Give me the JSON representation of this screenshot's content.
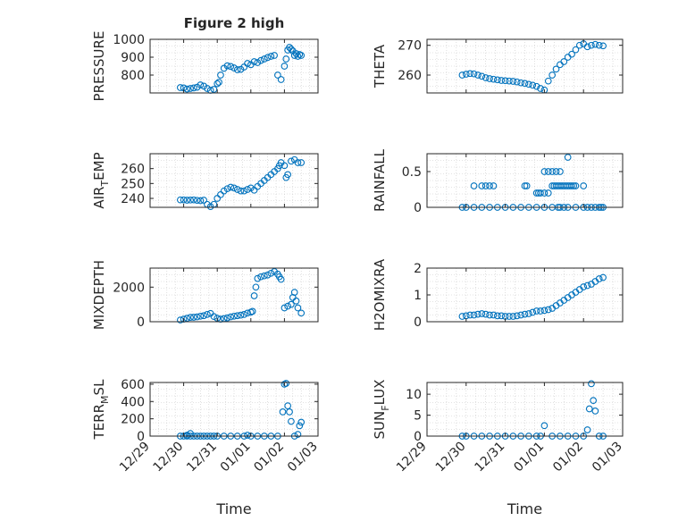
{
  "figure_title": "Figure 2 high",
  "colors": {
    "marker": "#0072BD",
    "axes": "#262626",
    "grid": "#c8c8c8",
    "background": "#ffffff"
  },
  "x_axis": {
    "label": "Time",
    "ticks": [
      "12/29",
      "12/30",
      "12/31",
      "01/01",
      "01/02",
      "01/03"
    ],
    "range_days": [
      0,
      5
    ]
  },
  "chart_data": [
    {
      "type": "scatter",
      "id": "pressure",
      "ylabel": "PRESSURE",
      "title": "Figure 2 high",
      "ylim": [
        700,
        1000
      ],
      "yticks": [
        800,
        900,
        1000
      ],
      "grid": true,
      "x": [
        0.9,
        1.0,
        1.1,
        1.2,
        1.3,
        1.4,
        1.5,
        1.6,
        1.7,
        1.8,
        1.9,
        2.0,
        2.05,
        2.1,
        2.2,
        2.3,
        2.4,
        2.5,
        2.6,
        2.7,
        2.8,
        2.9,
        3.0,
        3.1,
        3.2,
        3.3,
        3.4,
        3.5,
        3.6,
        3.7,
        3.8,
        3.9,
        4.0,
        4.05,
        4.1,
        4.15,
        4.2,
        4.25,
        4.3,
        4.35,
        4.4,
        4.45,
        4.5
      ],
      "y": [
        730,
        728,
        722,
        725,
        728,
        732,
        745,
        738,
        725,
        715,
        720,
        752,
        760,
        800,
        838,
        852,
        848,
        840,
        830,
        832,
        845,
        865,
        858,
        875,
        870,
        882,
        890,
        898,
        905,
        910,
        800,
        775,
        850,
        890,
        940,
        955,
        945,
        935,
        910,
        920,
        905,
        915,
        910
      ]
    },
    {
      "type": "scatter",
      "id": "theta",
      "ylabel": "THETA",
      "ylim": [
        254,
        272
      ],
      "yticks": [
        260,
        270
      ],
      "grid": true,
      "x": [
        0.9,
        1.0,
        1.1,
        1.2,
        1.3,
        1.4,
        1.5,
        1.6,
        1.7,
        1.8,
        1.9,
        2.0,
        2.1,
        2.2,
        2.3,
        2.4,
        2.5,
        2.6,
        2.7,
        2.8,
        2.9,
        3.0,
        3.1,
        3.2,
        3.3,
        3.4,
        3.5,
        3.6,
        3.7,
        3.8,
        3.9,
        4.0,
        4.1,
        4.2,
        4.3,
        4.4,
        4.5
      ],
      "y": [
        260,
        260.3,
        260.5,
        260.4,
        260,
        259.6,
        259.1,
        258.8,
        258.6,
        258.4,
        258.2,
        258.1,
        258,
        257.9,
        257.7,
        257.4,
        257.2,
        256.9,
        256.6,
        256.2,
        255.5,
        255,
        258,
        260,
        262,
        263.5,
        264.5,
        266,
        267,
        268.5,
        270,
        270.5,
        269.5,
        270,
        270.3,
        270,
        269.8
      ]
    },
    {
      "type": "scatter",
      "id": "air_temp",
      "ylabel": "AIR_TEMP",
      "ylim": [
        234,
        270
      ],
      "yticks": [
        240,
        250,
        260
      ],
      "grid": true,
      "x": [
        0.9,
        1.0,
        1.1,
        1.2,
        1.3,
        1.4,
        1.5,
        1.6,
        1.7,
        1.8,
        1.9,
        2.0,
        2.1,
        2.2,
        2.3,
        2.4,
        2.5,
        2.6,
        2.7,
        2.8,
        2.9,
        3.0,
        3.1,
        3.2,
        3.3,
        3.4,
        3.5,
        3.6,
        3.7,
        3.8,
        3.85,
        3.9,
        4.0,
        4.05,
        4.1,
        4.2,
        4.3,
        4.4,
        4.5
      ],
      "y": [
        239,
        239,
        238.8,
        238.9,
        239,
        238.7,
        238.5,
        238.8,
        236,
        234.5,
        236,
        240,
        242.5,
        245,
        246.5,
        247.5,
        247,
        246,
        245,
        245,
        246,
        247,
        245.5,
        248,
        250,
        252,
        254,
        256,
        258,
        260,
        262,
        264,
        262,
        254,
        256,
        265,
        266,
        264,
        264
      ]
    },
    {
      "type": "scatter",
      "id": "rainfall",
      "ylabel": "RAINFALL",
      "ylim": [
        0,
        0.75
      ],
      "yticks": [
        0,
        0.5
      ],
      "grid": true,
      "x": [
        0.9,
        1.0,
        1.2,
        1.4,
        1.6,
        1.8,
        2.0,
        2.2,
        2.4,
        2.6,
        2.8,
        3.0,
        3.2,
        3.4,
        3.6,
        3.8,
        4.0,
        4.2,
        4.4,
        4.5,
        1.2,
        1.4,
        1.5,
        1.6,
        1.7,
        2.5,
        2.55,
        2.8,
        2.85,
        2.9,
        3.0,
        3.1,
        3.2,
        3.25,
        3.3,
        3.35,
        3.4,
        3.45,
        3.5,
        3.55,
        3.6,
        3.65,
        3.7,
        3.75,
        3.8,
        3.0,
        3.1,
        3.2,
        3.3,
        3.4,
        3.6,
        4.0,
        3.35,
        3.5,
        4.1,
        4.3,
        4.45
      ],
      "y": [
        0,
        0,
        0,
        0,
        0,
        0,
        0,
        0,
        0,
        0,
        0,
        0,
        0,
        0,
        0,
        0,
        0,
        0,
        0,
        0,
        0.3,
        0.3,
        0.3,
        0.3,
        0.3,
        0.3,
        0.3,
        0.2,
        0.2,
        0.2,
        0.2,
        0.2,
        0.3,
        0.3,
        0.3,
        0.3,
        0.3,
        0.3,
        0.3,
        0.3,
        0.3,
        0.3,
        0.3,
        0.3,
        0.3,
        0.5,
        0.5,
        0.5,
        0.5,
        0.5,
        0.7,
        0.3,
        0,
        0,
        0,
        0,
        0
      ]
    },
    {
      "type": "scatter",
      "id": "mixdepth",
      "ylabel": "MIXDEPTH",
      "ylim": [
        0,
        3100
      ],
      "yticks": [
        0,
        2000
      ],
      "grid": true,
      "x": [
        0.9,
        1.0,
        1.1,
        1.2,
        1.3,
        1.4,
        1.5,
        1.6,
        1.7,
        1.8,
        1.9,
        2.0,
        2.1,
        2.2,
        2.3,
        2.4,
        2.5,
        2.6,
        2.7,
        2.8,
        2.9,
        3.0,
        3.05,
        3.1,
        3.15,
        3.2,
        3.3,
        3.4,
        3.5,
        3.6,
        3.7,
        3.8,
        3.85,
        3.9,
        4.0,
        4.1,
        4.2,
        4.25,
        4.3,
        4.35,
        4.4,
        4.5
      ],
      "y": [
        100,
        150,
        200,
        250,
        260,
        280,
        320,
        350,
        420,
        480,
        300,
        200,
        150,
        180,
        220,
        280,
        320,
        350,
        380,
        420,
        500,
        550,
        600,
        1500,
        2000,
        2500,
        2600,
        2650,
        2700,
        2800,
        2900,
        2750,
        2600,
        2450,
        800,
        900,
        1000,
        1400,
        1700,
        1200,
        800,
        500
      ]
    },
    {
      "type": "scatter",
      "id": "h2omixra",
      "ylabel": "H2OMIXRA",
      "ylim": [
        0,
        2
      ],
      "yticks": [
        0,
        1,
        2
      ],
      "grid": true,
      "x": [
        0.9,
        1.0,
        1.1,
        1.2,
        1.3,
        1.4,
        1.5,
        1.6,
        1.7,
        1.8,
        1.9,
        2.0,
        2.1,
        2.2,
        2.3,
        2.4,
        2.5,
        2.6,
        2.7,
        2.8,
        2.9,
        3.0,
        3.1,
        3.2,
        3.3,
        3.4,
        3.5,
        3.6,
        3.7,
        3.8,
        3.9,
        4.0,
        4.1,
        4.2,
        4.3,
        4.4,
        4.5
      ],
      "y": [
        0.2,
        0.22,
        0.25,
        0.25,
        0.28,
        0.3,
        0.28,
        0.25,
        0.25,
        0.22,
        0.22,
        0.2,
        0.2,
        0.2,
        0.22,
        0.25,
        0.28,
        0.3,
        0.35,
        0.4,
        0.4,
        0.42,
        0.45,
        0.5,
        0.6,
        0.7,
        0.8,
        0.9,
        1.0,
        1.1,
        1.2,
        1.3,
        1.35,
        1.4,
        1.5,
        1.6,
        1.65
      ]
    },
    {
      "type": "scatter",
      "id": "terr_msl",
      "ylabel": "TERR_MSL",
      "ylim": [
        0,
        620
      ],
      "yticks": [
        0,
        200,
        400,
        600
      ],
      "grid": true,
      "x": [
        0.9,
        1.0,
        1.1,
        1.2,
        1.3,
        1.4,
        1.5,
        1.6,
        1.7,
        1.8,
        1.9,
        2.0,
        2.2,
        2.4,
        2.6,
        2.8,
        3.0,
        3.2,
        3.4,
        3.6,
        3.8,
        3.95,
        4.0,
        4.05,
        4.1,
        4.15,
        4.2,
        4.3,
        4.4,
        4.45,
        4.5,
        1.1,
        1.2,
        2.9
      ],
      "y": [
        0,
        0,
        0,
        0,
        0,
        0,
        0,
        0,
        0,
        0,
        0,
        0,
        0,
        0,
        0,
        0,
        0,
        0,
        0,
        0,
        0,
        280,
        600,
        610,
        350,
        280,
        170,
        0,
        20,
        120,
        160,
        10,
        30,
        10
      ]
    },
    {
      "type": "scatter",
      "id": "sun_flux",
      "ylabel": "SUN_FLUX",
      "ylim": [
        0,
        12.8
      ],
      "yticks": [
        0,
        5,
        10
      ],
      "grid": true,
      "x": [
        0.9,
        1.0,
        1.2,
        1.4,
        1.6,
        1.8,
        2.0,
        2.2,
        2.4,
        2.6,
        2.8,
        2.9,
        3.0,
        3.2,
        3.4,
        3.6,
        3.8,
        4.0,
        4.1,
        4.15,
        4.2,
        4.25,
        4.3,
        4.4,
        4.5
      ],
      "y": [
        0,
        0,
        0,
        0,
        0,
        0,
        0,
        0,
        0,
        0,
        0,
        0,
        2.5,
        0,
        0,
        0,
        0,
        0,
        1.5,
        6.5,
        12.5,
        8.5,
        6.0,
        0,
        0
      ]
    }
  ]
}
